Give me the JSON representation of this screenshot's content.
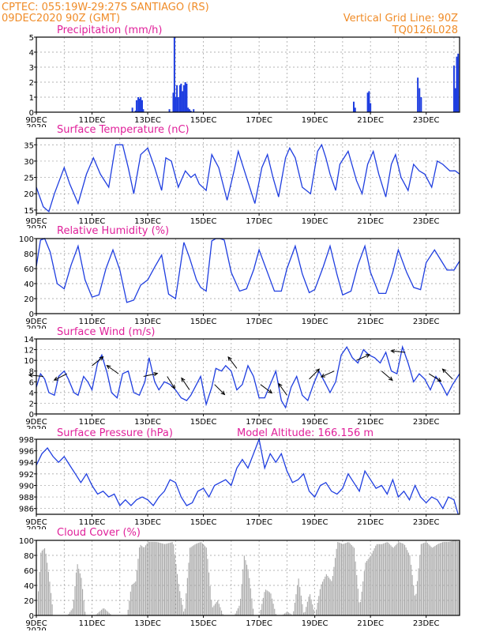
{
  "header": {
    "left_line1": "CPTEC:   055:19W-29:27S   SANTIAGO (RS)",
    "left_line2": "09DEC2020 90Z (GMT)",
    "right_line1": "Vertical Grid Line: 90Z",
    "right_line2": "TQ0126L028"
  },
  "colors": {
    "header": "#f08c28",
    "title": "#e0209a",
    "line": "#1f3ee0",
    "bar": "#1f3ee0",
    "cloud": "#a9a9a9"
  },
  "x_labels": [
    "9DEC",
    "11DEC",
    "13DEC",
    "15DEC",
    "17DEC",
    "19DEC",
    "21DEC",
    "23DEC"
  ],
  "x_label_days": [
    0,
    2,
    4,
    6,
    8,
    10,
    12,
    14
  ],
  "x_range_days": [
    0,
    15.2
  ],
  "year_fragment": "2020",
  "panels": {
    "precip": {
      "title": "Precipitation (mm/h)",
      "ylim": [
        0,
        5
      ],
      "yticks": [
        0,
        1,
        2,
        3,
        4,
        5
      ]
    },
    "temp": {
      "title": "Surface Temperature (nC)",
      "ylim": [
        14,
        37
      ],
      "yticks": [
        15,
        20,
        25,
        30,
        35
      ]
    },
    "rh": {
      "title": "Relative Humidity (%)",
      "ylim": [
        0,
        100
      ],
      "yticks": [
        0,
        20,
        40,
        60,
        80,
        100
      ]
    },
    "wind": {
      "title": "Surface Wind (m/s)",
      "ylim": [
        0,
        14
      ],
      "yticks": [
        0,
        2,
        4,
        6,
        8,
        10,
        12,
        14
      ]
    },
    "pres": {
      "title": "Surface Pressure (hPa)",
      "extra": "Model Altitude: 166.156 m",
      "ylim": [
        985,
        998
      ],
      "yticks": [
        986,
        988,
        990,
        992,
        994,
        996,
        998
      ]
    },
    "cloud": {
      "title": "Cloud Cover (%)",
      "ylim": [
        0,
        100
      ],
      "yticks": [
        0,
        20,
        40,
        60,
        80,
        100
      ]
    }
  },
  "chart_data": [
    {
      "type": "bar",
      "title": "Precipitation (mm/h)",
      "x_unit": "days since 9DEC2020 00Z",
      "x": [
        3.45,
        3.56,
        3.6,
        3.66,
        3.7,
        3.75,
        3.8,
        3.84,
        4.78,
        4.92,
        4.96,
        5.0,
        5.05,
        5.1,
        5.16,
        5.2,
        5.25,
        5.3,
        5.35,
        5.4,
        5.45,
        5.5,
        5.55,
        5.65,
        11.4,
        11.45,
        11.9,
        11.95,
        12.0,
        13.7,
        13.76,
        13.82,
        15.0,
        15.05,
        15.1,
        15.15
      ],
      "values": [
        0.3,
        0.1,
        0.8,
        1.0,
        0.9,
        1.0,
        0.8,
        0.2,
        0.2,
        1.3,
        5.0,
        1.0,
        1.8,
        1.0,
        1.8,
        1.9,
        1.4,
        1.8,
        2.0,
        1.9,
        0.3,
        0.2,
        0.1,
        0.2,
        0.7,
        0.3,
        1.3,
        1.4,
        0.6,
        2.3,
        1.6,
        1.0,
        3.1,
        1.6,
        3.7,
        3.9
      ]
    },
    {
      "type": "line",
      "title": "Surface Temperature (nC)",
      "x_unit": "days since 9DEC2020 00Z",
      "x": [
        0,
        0.25,
        0.45,
        0.65,
        1.0,
        1.2,
        1.5,
        1.8,
        2.05,
        2.3,
        2.6,
        2.85,
        3.1,
        3.3,
        3.5,
        3.75,
        4.0,
        4.25,
        4.5,
        4.65,
        4.85,
        5.1,
        5.35,
        5.55,
        5.7,
        5.85,
        6.1,
        6.3,
        6.55,
        6.85,
        7.1,
        7.25,
        7.55,
        7.85,
        8.1,
        8.3,
        8.5,
        8.7,
        8.95,
        9.1,
        9.3,
        9.55,
        9.85,
        10.1,
        10.25,
        10.4,
        10.55,
        10.75,
        10.9,
        11.2,
        11.5,
        11.7,
        11.9,
        12.1,
        12.3,
        12.55,
        12.75,
        12.9,
        13.1,
        13.35,
        13.55,
        13.75,
        13.95,
        14.2,
        14.4,
        14.6,
        14.85,
        15.05,
        15.2
      ],
      "values": [
        22,
        16,
        14.5,
        20,
        28,
        23,
        17,
        26,
        31,
        26,
        22,
        35,
        35,
        28,
        20,
        32,
        34,
        28,
        21,
        31,
        30,
        22,
        27,
        25,
        26,
        23,
        21,
        32,
        28,
        18,
        27,
        33,
        25,
        17,
        28,
        32,
        25,
        19,
        31,
        34,
        31,
        22,
        20,
        33,
        35,
        31,
        26,
        21,
        29,
        33,
        24,
        20,
        29,
        33,
        26,
        19,
        29,
        32,
        25,
        21,
        29,
        27,
        26,
        22,
        30,
        29,
        27,
        27,
        26
      ]
    },
    {
      "type": "line",
      "title": "Relative Humidity (%)",
      "x_unit": "days since 9DEC2020 00Z",
      "x": [
        0,
        0.15,
        0.3,
        0.5,
        0.75,
        1.0,
        1.25,
        1.5,
        1.75,
        2.0,
        2.25,
        2.5,
        2.75,
        3.0,
        3.25,
        3.5,
        3.75,
        4.0,
        4.25,
        4.5,
        4.75,
        5.0,
        5.3,
        5.5,
        5.75,
        5.9,
        6.1,
        6.3,
        6.45,
        6.6,
        6.75,
        7.0,
        7.3,
        7.55,
        7.8,
        8.0,
        8.3,
        8.55,
        8.8,
        9.0,
        9.3,
        9.55,
        9.8,
        10.0,
        10.3,
        10.55,
        10.8,
        11.0,
        11.3,
        11.55,
        11.8,
        12.0,
        12.3,
        12.55,
        12.8,
        13.0,
        13.3,
        13.55,
        13.8,
        14.0,
        14.3,
        14.5,
        14.75,
        15.0,
        15.2
      ],
      "values": [
        63,
        98,
        100,
        82,
        40,
        33,
        65,
        90,
        45,
        22,
        25,
        60,
        85,
        58,
        15,
        18,
        38,
        45,
        62,
        78,
        26,
        20,
        95,
        75,
        45,
        35,
        30,
        97,
        100,
        100,
        98,
        55,
        30,
        33,
        58,
        85,
        55,
        30,
        30,
        60,
        90,
        53,
        28,
        32,
        62,
        90,
        52,
        25,
        30,
        65,
        90,
        55,
        27,
        27,
        55,
        85,
        55,
        35,
        32,
        68,
        85,
        73,
        58,
        58,
        70
      ]
    },
    {
      "type": "line",
      "title": "Surface Wind (m/s)",
      "x_unit": "days since 9DEC2020 00Z",
      "x": [
        0,
        0.15,
        0.3,
        0.45,
        0.65,
        0.8,
        1.0,
        1.15,
        1.35,
        1.5,
        1.7,
        1.85,
        2.0,
        2.2,
        2.35,
        2.55,
        2.7,
        2.9,
        3.1,
        3.3,
        3.5,
        3.7,
        3.9,
        4.05,
        4.25,
        4.4,
        4.6,
        4.8,
        5.0,
        5.2,
        5.4,
        5.55,
        5.75,
        5.9,
        6.1,
        6.3,
        6.45,
        6.65,
        6.8,
        7.0,
        7.2,
        7.4,
        7.6,
        7.8,
        8.0,
        8.2,
        8.4,
        8.6,
        8.8,
        8.95,
        9.15,
        9.35,
        9.55,
        9.75,
        9.95,
        10.15,
        10.35,
        10.55,
        10.75,
        10.95,
        11.15,
        11.35,
        11.55,
        11.75,
        11.95,
        12.15,
        12.35,
        12.55,
        12.75,
        12.95,
        13.15,
        13.35,
        13.55,
        13.75,
        13.95,
        14.15,
        14.35,
        14.55,
        14.75,
        14.95,
        15.2
      ],
      "values": [
        5,
        7.5,
        6.5,
        4,
        3.5,
        7,
        8,
        6.5,
        4,
        3.5,
        7,
        6,
        4.5,
        9.5,
        11,
        7.5,
        4,
        3,
        7.5,
        8,
        4,
        3.5,
        6,
        10.5,
        6,
        4.5,
        6,
        5.5,
        4.5,
        3,
        2.5,
        3.5,
        5.5,
        7,
        1.8,
        5,
        8.5,
        8,
        9,
        8,
        4.5,
        5.5,
        9,
        7,
        3,
        3,
        5.5,
        8,
        2.5,
        1.2,
        5,
        7,
        3.5,
        2.5,
        5.5,
        8,
        6,
        4,
        6,
        11,
        12.5,
        10.5,
        9.5,
        12,
        11,
        10.5,
        9.5,
        11.5,
        8,
        7.5,
        12.5,
        9.5,
        6,
        7.5,
        6.5,
        4.5,
        7,
        5.5,
        3.5,
        5.5,
        7.5
      ]
    },
    {
      "type": "line",
      "title": "Surface Pressure (hPa)",
      "x_unit": "days since 9DEC2020 00Z",
      "x": [
        0,
        0.2,
        0.4,
        0.6,
        0.8,
        1.0,
        1.2,
        1.4,
        1.6,
        1.8,
        2.0,
        2.2,
        2.4,
        2.6,
        2.8,
        3.0,
        3.2,
        3.4,
        3.6,
        3.8,
        4.0,
        4.2,
        4.4,
        4.6,
        4.8,
        5.0,
        5.2,
        5.4,
        5.6,
        5.8,
        6.0,
        6.2,
        6.4,
        6.6,
        6.8,
        7.0,
        7.2,
        7.4,
        7.6,
        7.8,
        8.0,
        8.2,
        8.4,
        8.6,
        8.8,
        9.0,
        9.2,
        9.4,
        9.6,
        9.8,
        10.0,
        10.2,
        10.4,
        10.6,
        10.8,
        11.0,
        11.2,
        11.4,
        11.6,
        11.8,
        12.0,
        12.2,
        12.4,
        12.6,
        12.8,
        13.0,
        13.2,
        13.4,
        13.6,
        13.8,
        14.0,
        14.2,
        14.4,
        14.6,
        14.8,
        15.0,
        15.15
      ],
      "values": [
        993.5,
        995.5,
        996.5,
        995,
        994,
        995,
        993.5,
        992,
        990.5,
        992,
        990,
        988.5,
        989,
        988,
        988.5,
        986.5,
        987.5,
        986.5,
        987.5,
        988,
        987.5,
        986.5,
        988,
        989,
        991,
        990.5,
        988,
        986.5,
        987,
        989,
        989.5,
        988,
        990,
        990.5,
        991,
        990,
        993,
        994.5,
        993,
        995.5,
        998,
        993,
        995.5,
        994,
        995.5,
        992.5,
        990.5,
        991,
        992,
        989,
        988,
        990,
        990.5,
        989,
        988.5,
        989.5,
        992,
        990.5,
        989,
        992.5,
        991,
        989.5,
        990,
        988.5,
        991,
        988,
        989,
        987.5,
        990,
        988,
        987,
        988,
        987.5,
        986,
        988,
        987.5,
        985
      ]
    },
    {
      "type": "area",
      "title": "Cloud Cover (%)",
      "x_unit": "days since 9DEC2020 00Z",
      "x": [
        0,
        0.15,
        0.3,
        0.45,
        0.6,
        0.8,
        1.1,
        1.3,
        1.45,
        1.6,
        1.75,
        1.9,
        2.1,
        2.4,
        2.7,
        3.0,
        3.25,
        3.4,
        3.55,
        3.7,
        3.85,
        4.0,
        4.3,
        4.6,
        4.9,
        5.1,
        5.3,
        5.5,
        5.7,
        5.9,
        6.1,
        6.3,
        6.5,
        6.7,
        6.9,
        7.1,
        7.3,
        7.45,
        7.6,
        7.8,
        8.0,
        8.2,
        8.4,
        8.6,
        8.8,
        9.0,
        9.2,
        9.4,
        9.6,
        9.8,
        10.0,
        10.2,
        10.4,
        10.6,
        10.8,
        11.0,
        11.2,
        11.4,
        11.6,
        11.8,
        12.0,
        12.2,
        12.4,
        12.6,
        12.8,
        13.0,
        13.2,
        13.4,
        13.6,
        13.8,
        14.0,
        14.2,
        14.4,
        14.6,
        14.8,
        15.0,
        15.2
      ],
      "values": [
        0,
        85,
        90,
        50,
        0,
        0,
        0,
        10,
        70,
        50,
        0,
        0,
        0,
        10,
        0,
        0,
        0,
        40,
        45,
        95,
        90,
        98,
        98,
        95,
        98,
        40,
        0,
        90,
        95,
        98,
        90,
        10,
        20,
        0,
        0,
        0,
        15,
        80,
        60,
        0,
        0,
        35,
        30,
        0,
        0,
        5,
        0,
        50,
        0,
        30,
        0,
        40,
        55,
        45,
        98,
        95,
        98,
        90,
        10,
        70,
        80,
        95,
        95,
        98,
        90,
        98,
        95,
        80,
        20,
        95,
        98,
        90,
        95,
        98,
        98,
        100,
        98
      ]
    },
    {
      "type": "vector",
      "title": "Surface Wind (m/s)",
      "x_unit": "days since 9DEC2020 00Z",
      "x": [
        0.25,
        1.1,
        2.0,
        2.95,
        3.85,
        4.7,
        5.5,
        6.4,
        7.2,
        8.05,
        9.0,
        9.8,
        10.7,
        11.5,
        12.4,
        13.25,
        14.1,
        14.95
      ],
      "speed": [
        7,
        7.5,
        9,
        7.5,
        7,
        7,
        4.5,
        5.5,
        8.5,
        5.5,
        3.5,
        6.5,
        8,
        10,
        8,
        11.5,
        7.5,
        6.5
      ],
      "u": [
        -1.0,
        -0.8,
        1.0,
        -0.7,
        0.9,
        0.5,
        -0.4,
        0.7,
        -0.6,
        0.8,
        -0.5,
        0.6,
        -0.9,
        0.9,
        0.7,
        -1.0,
        0.8,
        -0.6
      ],
      "v": [
        0.1,
        -0.4,
        0.8,
        0.5,
        0.2,
        -0.8,
        0.6,
        -0.7,
        0.8,
        -0.6,
        0.7,
        0.6,
        -0.4,
        0.4,
        -0.6,
        0.1,
        -0.5,
        0.6
      ]
    }
  ]
}
